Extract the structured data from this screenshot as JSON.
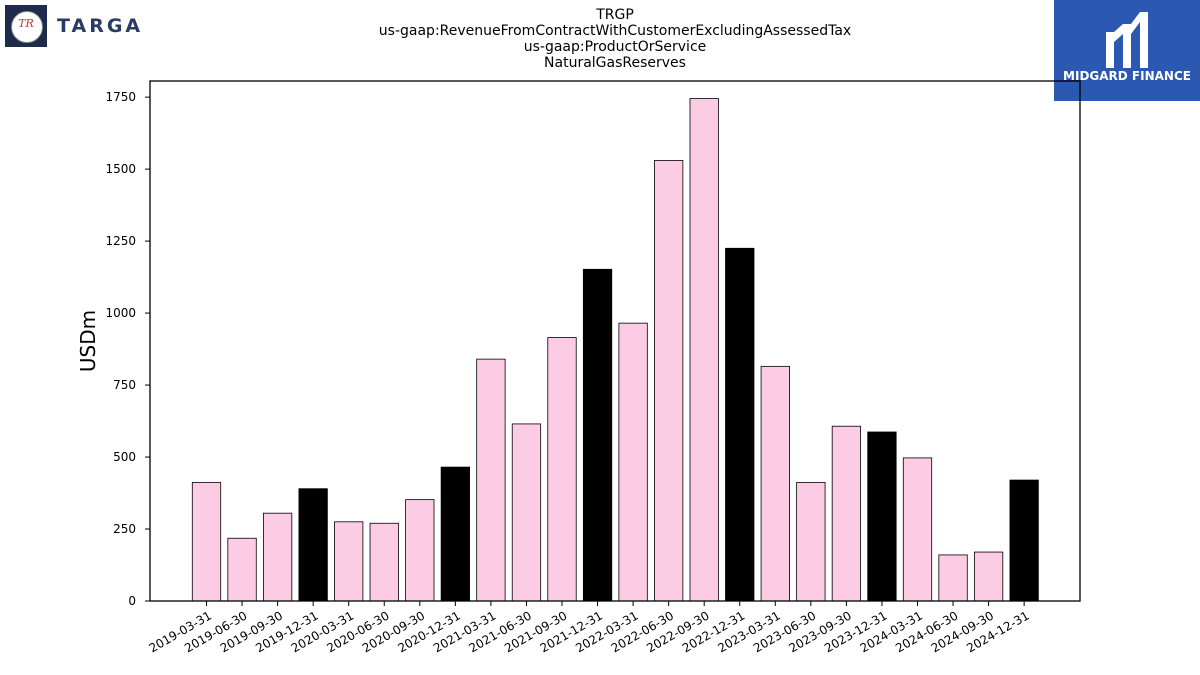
{
  "header": {
    "title_lines": [
      "TRGP",
      "us-gaap:RevenueFromContractWithCustomerExcludingAssessedTax",
      "us-gaap:ProductOrService",
      "NaturalGasReserves"
    ]
  },
  "logos": {
    "left": {
      "badge_text": "TR",
      "wordmark": "TARGA"
    },
    "right": {
      "brand": "MIDGARD FINANCE",
      "color": "#2b58b0"
    }
  },
  "chart_data": {
    "type": "bar",
    "categories": [
      "2019-03-31",
      "2019-06-30",
      "2019-09-30",
      "2019-12-31",
      "2020-03-31",
      "2020-06-30",
      "2020-09-30",
      "2020-12-31",
      "2021-03-31",
      "2021-06-30",
      "2021-09-30",
      "2021-12-31",
      "2022-03-31",
      "2022-06-30",
      "2022-09-30",
      "2022-12-31",
      "2023-03-31",
      "2023-06-30",
      "2023-09-30",
      "2023-12-31",
      "2024-03-31",
      "2024-06-30",
      "2024-09-30",
      "2024-12-31"
    ],
    "values": [
      412,
      218,
      305,
      390,
      275,
      270,
      352,
      465,
      840,
      615,
      915,
      1152,
      965,
      1530,
      1745,
      1225,
      815,
      412,
      607,
      587,
      497,
      160,
      170,
      420
    ],
    "highlight_categories": [
      "2019-12-31",
      "2020-12-31",
      "2021-12-31",
      "2022-12-31",
      "2023-12-31",
      "2024-12-31"
    ],
    "colors": {
      "default": "#fccce4",
      "highlight": "#000000",
      "edge": "#000000"
    },
    "ylabel": "USDm",
    "ylim": [
      0,
      1806
    ],
    "yticks": [
      0,
      250,
      500,
      750,
      1000,
      1250,
      1500,
      1750
    ],
    "grid": false
  }
}
